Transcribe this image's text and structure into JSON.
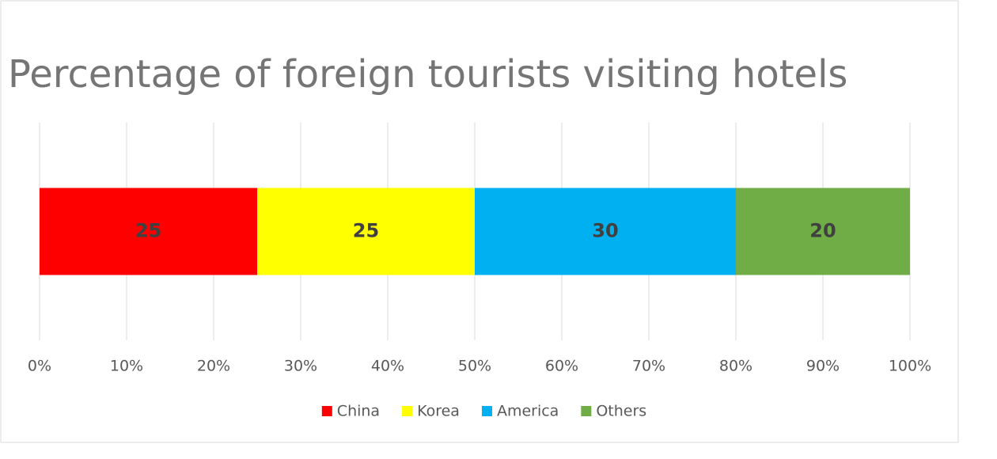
{
  "chart_data": {
    "type": "bar",
    "orientation": "horizontal",
    "stacked": true,
    "title": "Percentage of foreign tourists visiting hotels",
    "categories": [
      null
    ],
    "series": [
      {
        "name": "China",
        "color": "#ff0000",
        "values": [
          25
        ]
      },
      {
        "name": "Korea",
        "color": "#ffff00",
        "values": [
          25
        ]
      },
      {
        "name": "America",
        "color": "#00b0f0",
        "values": [
          30
        ]
      },
      {
        "name": "Others",
        "color": "#70ad47",
        "values": [
          20
        ]
      }
    ],
    "xlim": [
      0,
      100
    ],
    "xticks": [
      {
        "value": 0,
        "label": "0%"
      },
      {
        "value": 10,
        "label": "10%"
      },
      {
        "value": 20,
        "label": "20%"
      },
      {
        "value": 30,
        "label": "30%"
      },
      {
        "value": 40,
        "label": "40%"
      },
      {
        "value": 50,
        "label": "50%"
      },
      {
        "value": 60,
        "label": "60%"
      },
      {
        "value": 70,
        "label": "70%"
      },
      {
        "value": 80,
        "label": "80%"
      },
      {
        "value": 90,
        "label": "90%"
      },
      {
        "value": 100,
        "label": "100%"
      }
    ],
    "grid": true,
    "legend": "bottom"
  }
}
